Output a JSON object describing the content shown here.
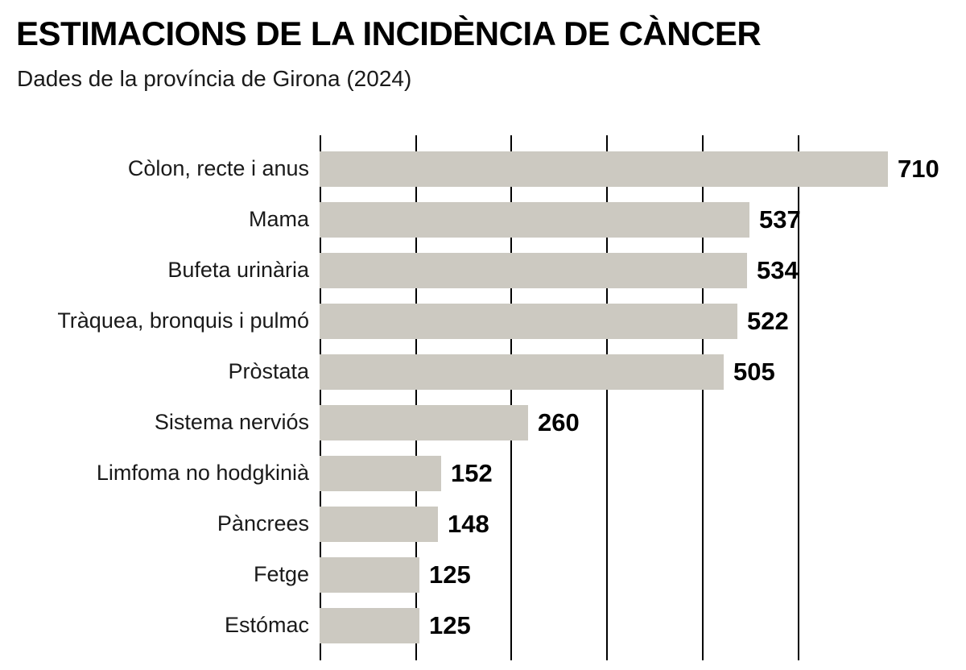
{
  "header": {
    "title": "ESTIMACIONS DE LA INCIDÈNCIA DE CÀNCER",
    "subtitle": "Dades de la província de Girona (2024)"
  },
  "chart_data": {
    "type": "bar",
    "orientation": "horizontal",
    "title": "ESTIMACIONS DE LA INCIDÈNCIA DE CÀNCER",
    "subtitle": "Dades de la província de Girona (2024)",
    "categories": [
      "Còlon, recte i anus",
      "Mama",
      "Bufeta urinària",
      "Tràquea, bronquis i pulmó",
      "Pròstata",
      "Sistema nerviós",
      "Limfoma no hodgkinià",
      "Pàncrees",
      "Fetge",
      "Estómac"
    ],
    "values": [
      710,
      537,
      534,
      522,
      505,
      260,
      152,
      148,
      125,
      125
    ],
    "xlim": [
      0,
      714
    ],
    "grid": true,
    "gridline_count": 6,
    "gridline_step_units": 120,
    "bar_color": "#ccc9c1",
    "gridline_color": "#000000",
    "value_labels": "bold, right of bar end",
    "legend": "none"
  }
}
